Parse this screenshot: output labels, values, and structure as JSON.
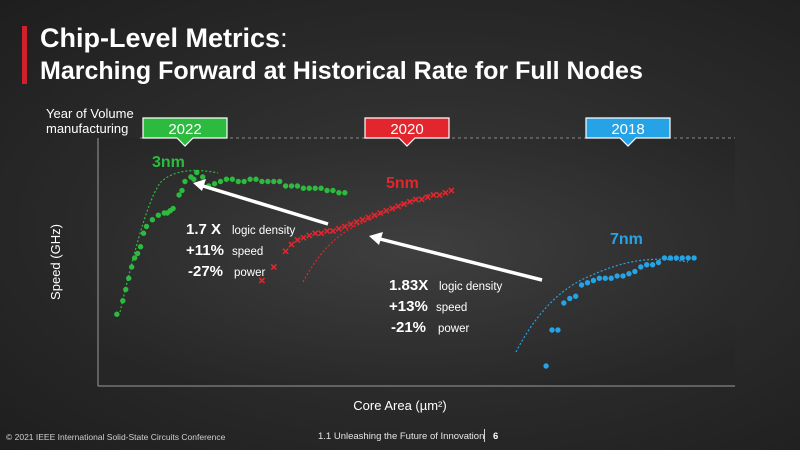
{
  "slide": {
    "title_bold": "Chip-Level Metrics",
    "title_suffix": ":",
    "subtitle": "Marching Forward at Historical Rate for Full Nodes",
    "year_label_line1": "Year of Volume",
    "year_label_line2": "manufacturing",
    "footer_left": "© 2021 IEEE International Solid-State Circuits Conference",
    "footer_center": "1.1 Unleashing the Future of Innovation",
    "footer_page": "6"
  },
  "colors": {
    "n3": "#2dbb3f",
    "n5": "#e3262d",
    "n7": "#26a3e6",
    "accent": "#d0202e",
    "arrow": "#ffffff"
  },
  "chart_data": {
    "type": "scatter",
    "xlabel": "Core Area (µm²)",
    "ylabel": "Speed (GHz)",
    "units": "relative (unlabeled axes)",
    "xlim": [
      0,
      100
    ],
    "ylim": [
      0,
      100
    ],
    "grid": false,
    "series": [
      {
        "name": "3nm",
        "year": "2022",
        "color": "#2dbb3f",
        "points": [
          [
            1.5,
            27
          ],
          [
            2.5,
            33
          ],
          [
            3,
            38
          ],
          [
            3.5,
            43
          ],
          [
            4,
            48
          ],
          [
            4.5,
            52
          ],
          [
            5,
            54
          ],
          [
            5.5,
            57
          ],
          [
            6,
            63
          ],
          [
            6.5,
            66
          ],
          [
            7.5,
            69
          ],
          [
            8.5,
            71
          ],
          [
            9.5,
            72
          ],
          [
            10,
            72
          ],
          [
            10.5,
            73
          ],
          [
            11,
            74
          ],
          [
            12,
            80
          ],
          [
            12.5,
            82
          ],
          [
            13,
            86
          ],
          [
            14,
            88
          ],
          [
            14.5,
            87
          ],
          [
            15,
            90
          ],
          [
            16,
            88
          ],
          [
            17,
            84
          ],
          [
            18,
            85
          ],
          [
            19,
            86
          ],
          [
            20,
            87
          ],
          [
            21,
            87
          ],
          [
            22,
            86
          ],
          [
            23,
            86
          ],
          [
            24,
            87
          ],
          [
            25,
            87
          ],
          [
            26,
            86
          ],
          [
            27,
            86
          ],
          [
            28,
            86
          ],
          [
            29,
            86
          ],
          [
            30,
            84
          ],
          [
            31,
            84
          ],
          [
            32,
            84
          ],
          [
            33,
            83
          ],
          [
            34,
            83
          ],
          [
            35,
            83
          ],
          [
            36,
            83
          ],
          [
            37,
            82
          ],
          [
            38,
            82
          ],
          [
            39,
            81
          ],
          [
            40,
            81
          ]
        ]
      },
      {
        "name": "5nm",
        "year": "2020",
        "color": "#e3262d",
        "points": [
          [
            26,
            42
          ],
          [
            28,
            48
          ],
          [
            30,
            55
          ],
          [
            31,
            58
          ],
          [
            32,
            60
          ],
          [
            33,
            61
          ],
          [
            34,
            62
          ],
          [
            35,
            63
          ],
          [
            36,
            63
          ],
          [
            37,
            64
          ],
          [
            38,
            64
          ],
          [
            39,
            65
          ],
          [
            40,
            66
          ],
          [
            41,
            67
          ],
          [
            42,
            68
          ],
          [
            43,
            69
          ],
          [
            44,
            70
          ],
          [
            45,
            71
          ],
          [
            46,
            72
          ],
          [
            47,
            73
          ],
          [
            48,
            74
          ],
          [
            49,
            75
          ],
          [
            50,
            76
          ],
          [
            51,
            77
          ],
          [
            52,
            78
          ],
          [
            53,
            78
          ],
          [
            54,
            79
          ],
          [
            55,
            80
          ],
          [
            56,
            80
          ],
          [
            57,
            81
          ],
          [
            58,
            82
          ]
        ]
      },
      {
        "name": "7nm",
        "year": "2018",
        "color": "#26a3e6",
        "points": [
          [
            74,
            4
          ],
          [
            75,
            20
          ],
          [
            76,
            20
          ],
          [
            77,
            32
          ],
          [
            78,
            34
          ],
          [
            79,
            35
          ],
          [
            80,
            40
          ],
          [
            81,
            41
          ],
          [
            82,
            42
          ],
          [
            83,
            43
          ],
          [
            84,
            43
          ],
          [
            85,
            43
          ],
          [
            86,
            44
          ],
          [
            87,
            44
          ],
          [
            88,
            45
          ],
          [
            89,
            46
          ],
          [
            90,
            48
          ],
          [
            91,
            49
          ],
          [
            92,
            49
          ],
          [
            93,
            50
          ],
          [
            94,
            52
          ],
          [
            95,
            52
          ],
          [
            96,
            52
          ],
          [
            97,
            52
          ],
          [
            98,
            52
          ],
          [
            99,
            52
          ]
        ]
      }
    ],
    "annotations": [
      {
        "ratio": "1.7 X",
        "ratio_label": "logic density",
        "speed": "+11%",
        "speed_label": "speed",
        "power": "-27%",
        "power_label": "power"
      },
      {
        "ratio": "1.83X",
        "ratio_label": "logic density",
        "speed": "+13%",
        "speed_label": "speed",
        "power": "-21%",
        "power_label": "power"
      }
    ]
  }
}
